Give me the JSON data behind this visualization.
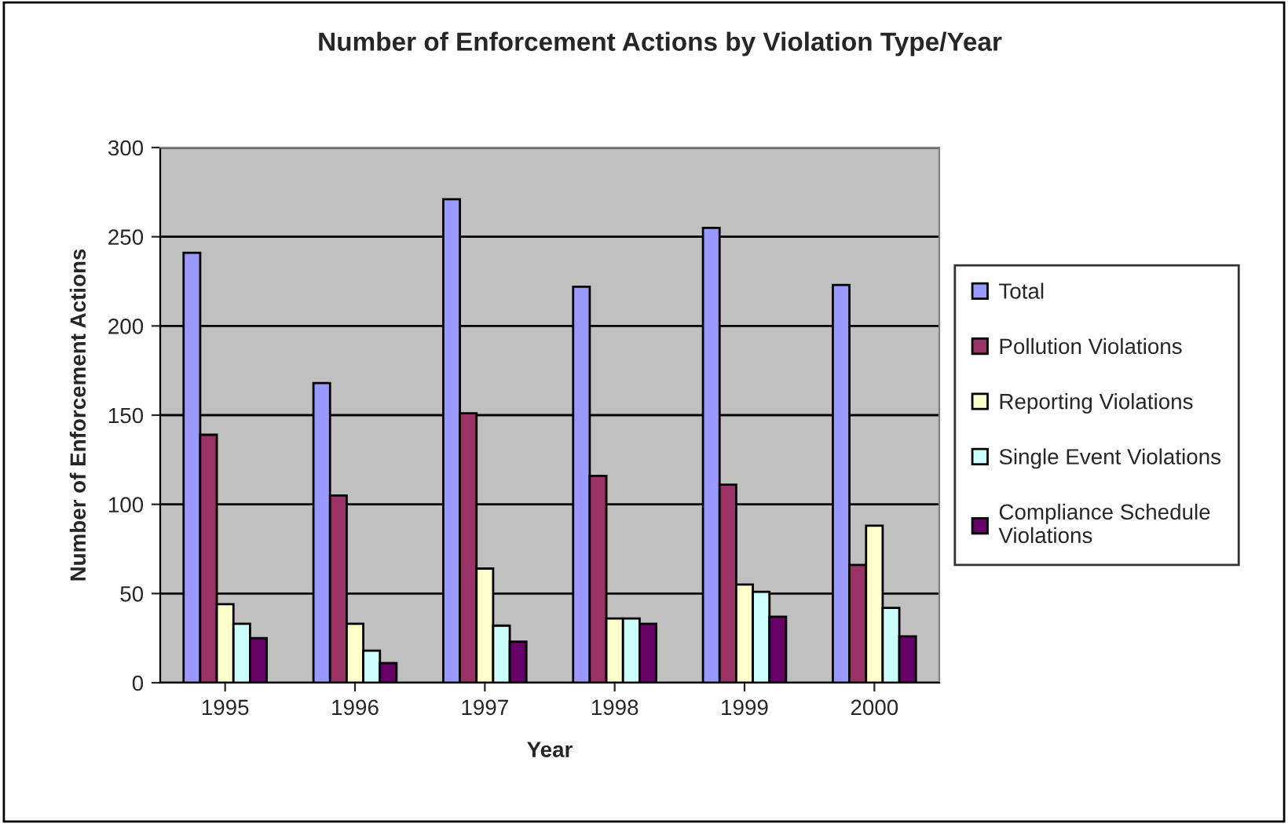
{
  "chart_data": {
    "type": "bar",
    "title": "Number of Enforcement Actions by Violation Type/Year",
    "xlabel": "Year",
    "ylabel": "Number of Enforcement Actions",
    "categories": [
      "1995",
      "1996",
      "1997",
      "1998",
      "1999",
      "2000"
    ],
    "series": [
      {
        "name": "Total",
        "color": "#9999ff",
        "values": [
          241,
          168,
          271,
          222,
          255,
          223
        ]
      },
      {
        "name": "Pollution Violations",
        "color": "#993366",
        "values": [
          139,
          105,
          151,
          116,
          111,
          66
        ]
      },
      {
        "name": "Reporting Violations",
        "color": "#ffffcc",
        "values": [
          44,
          33,
          64,
          36,
          55,
          88
        ]
      },
      {
        "name": "Single Event Violations",
        "color": "#ccffff",
        "values": [
          33,
          18,
          32,
          36,
          51,
          42
        ]
      },
      {
        "name": "Compliance Schedule Violations",
        "color": "#660066",
        "values": [
          25,
          11,
          23,
          33,
          37,
          26
        ]
      }
    ],
    "ylim": [
      0,
      300
    ],
    "yticks": [
      0,
      50,
      100,
      150,
      200,
      250,
      300
    ],
    "grid": "y",
    "legend": "right"
  }
}
